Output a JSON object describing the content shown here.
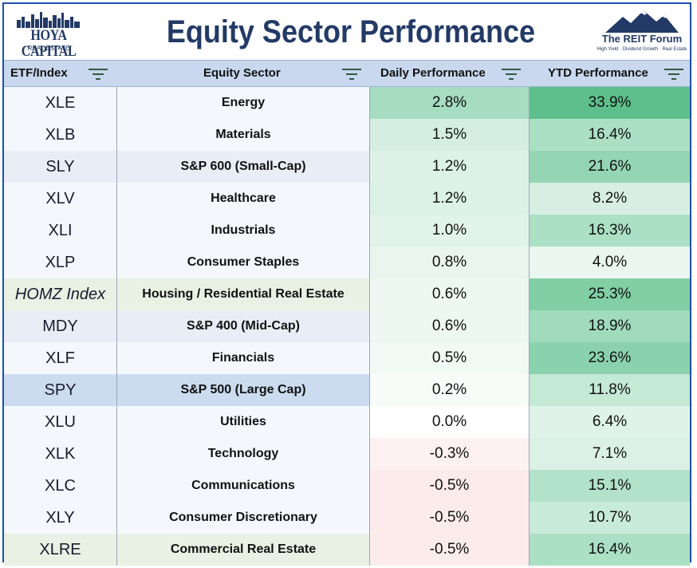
{
  "header": {
    "title": "Equity Sector Performance",
    "left_logo": {
      "brand": "HOYA CAPITAL",
      "sub": "REAL ESTATE"
    },
    "right_logo": {
      "name": "The REIT Forum",
      "tagline": "High Yield · Dividend Growth · Real Estate"
    }
  },
  "columns": [
    {
      "label": "ETF/Index",
      "icon": "filter-icon"
    },
    {
      "label": "Equity Sector",
      "icon": "filter-icon"
    },
    {
      "label": "Daily Performance",
      "icon": "filter-icon"
    },
    {
      "label": "YTD Performance",
      "icon": "filter-icon"
    }
  ],
  "rows": [
    {
      "etf": "XLE",
      "sector": "Energy",
      "daily": "2.8%",
      "ytd": "33.9%",
      "daily_bg": "#a6dcbf",
      "ytd_bg": "#5ebf8c",
      "etf_bg": "#f4f8fc",
      "italic": false
    },
    {
      "etf": "XLB",
      "sector": "Materials",
      "daily": "1.5%",
      "ytd": "16.4%",
      "daily_bg": "#d4efe1",
      "ytd_bg": "#ace0c5",
      "etf_bg": "#f4f8fc",
      "italic": false
    },
    {
      "etf": "SLY",
      "sector": "S&P 600 (Small-Cap)",
      "daily": "1.2%",
      "ytd": "21.6%",
      "daily_bg": "#dcf2e6",
      "ytd_bg": "#94d6b4",
      "etf_bg": "#e9eef6",
      "italic": false
    },
    {
      "etf": "XLV",
      "sector": "Healthcare",
      "daily": "1.2%",
      "ytd": "8.2%",
      "daily_bg": "#dcf2e6",
      "ytd_bg": "#d6efe2",
      "etf_bg": "#f4f8fc",
      "italic": false
    },
    {
      "etf": "XLI",
      "sector": "Industrials",
      "daily": "1.0%",
      "ytd": "16.3%",
      "daily_bg": "#e2f4ea",
      "ytd_bg": "#ace0c5",
      "etf_bg": "#f4f8fc",
      "italic": false
    },
    {
      "etf": "XLP",
      "sector": "Consumer Staples",
      "daily": "0.8%",
      "ytd": "4.0%",
      "daily_bg": "#e8f6ee",
      "ytd_bg": "#eaf7f0",
      "etf_bg": "#f4f8fc",
      "italic": false
    },
    {
      "etf": "HOMZ Index",
      "sector": "Housing / Residential Real Estate",
      "daily": "0.6%",
      "ytd": "25.3%",
      "daily_bg": "#edf8f2",
      "ytd_bg": "#82cfa6",
      "etf_bg": "#e8f1e3",
      "italic": true
    },
    {
      "etf": "MDY",
      "sector": "S&P 400 (Mid-Cap)",
      "daily": "0.6%",
      "ytd": "18.9%",
      "daily_bg": "#edf8f2",
      "ytd_bg": "#a0dbbd",
      "etf_bg": "#e9eef6",
      "italic": false
    },
    {
      "etf": "XLF",
      "sector": "Financials",
      "daily": "0.5%",
      "ytd": "23.6%",
      "daily_bg": "#f0f9f4",
      "ytd_bg": "#8ad2ad",
      "etf_bg": "#f4f8fc",
      "italic": false
    },
    {
      "etf": "SPY",
      "sector": "S&P 500 (Large Cap)",
      "daily": "0.2%",
      "ytd": "11.8%",
      "daily_bg": "#f7fcf9",
      "ytd_bg": "#c4e9d5",
      "etf_bg": "#ccdcf0",
      "italic": false
    },
    {
      "etf": "XLU",
      "sector": "Utilities",
      "daily": "0.0%",
      "ytd": "6.4%",
      "daily_bg": "#ffffff",
      "ytd_bg": "#dff3e8",
      "etf_bg": "#f4f8fc",
      "italic": false
    },
    {
      "etf": "XLK",
      "sector": "Technology",
      "daily": "-0.3%",
      "ytd": "7.1%",
      "daily_bg": "#fdf1f1",
      "ytd_bg": "#dbf1e5",
      "etf_bg": "#f4f8fc",
      "italic": false
    },
    {
      "etf": "XLC",
      "sector": "Communications",
      "daily": "-0.5%",
      "ytd": "15.1%",
      "daily_bg": "#fcebeb",
      "ytd_bg": "#b2e2c9",
      "etf_bg": "#f4f8fc",
      "italic": false
    },
    {
      "etf": "XLY",
      "sector": "Consumer Discretionary",
      "daily": "-0.5%",
      "ytd": "10.7%",
      "daily_bg": "#fcebeb",
      "ytd_bg": "#c9ebd9",
      "etf_bg": "#f4f8fc",
      "italic": false
    },
    {
      "etf": "XLRE",
      "sector": "Commercial Real Estate",
      "daily": "-0.5%",
      "ytd": "16.4%",
      "daily_bg": "#fcebeb",
      "ytd_bg": "#ace0c5",
      "etf_bg": "#e8f1e3",
      "italic": false
    }
  ],
  "colors": {
    "title": "#233a66",
    "border": "#1f4fa8",
    "header_bg": "#c9d8ee"
  }
}
